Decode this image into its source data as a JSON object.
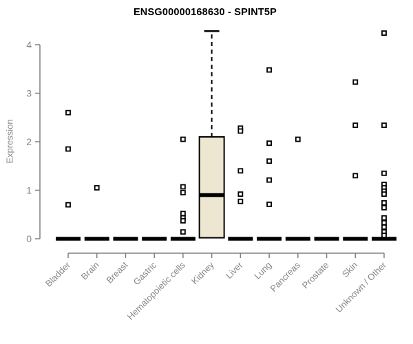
{
  "chart_data": {
    "type": "boxplot",
    "title": "ENSG00000168630 - SPINT5P",
    "ylabel": "Expression",
    "xlabel": "",
    "ylim": [
      0,
      4.4
    ],
    "yticks": [
      0,
      1,
      2,
      3,
      4
    ],
    "grid": false,
    "legend": null,
    "categories": [
      "Bladder",
      "Brain",
      "Breast",
      "Gastric",
      "Hematopoietic cells",
      "Kidney",
      "Liver",
      "Lung",
      "Pancreas",
      "Prostate",
      "Skin",
      "Unknown / Other"
    ],
    "boxes": [
      {
        "category": "Bladder",
        "whisker_low": 0,
        "q1": 0,
        "median": 0,
        "q3": 0,
        "whisker_high": 0,
        "outliers": [
          2.6,
          1.85,
          0.7
        ]
      },
      {
        "category": "Brain",
        "whisker_low": 0,
        "q1": 0,
        "median": 0,
        "q3": 0,
        "whisker_high": 0,
        "outliers": [
          1.05
        ]
      },
      {
        "category": "Breast",
        "whisker_low": 0,
        "q1": 0,
        "median": 0,
        "q3": 0,
        "whisker_high": 0,
        "outliers": []
      },
      {
        "category": "Gastric",
        "whisker_low": 0,
        "q1": 0,
        "median": 0,
        "q3": 0,
        "whisker_high": 0,
        "outliers": []
      },
      {
        "category": "Hematopoietic cells",
        "whisker_low": 0,
        "q1": 0,
        "median": 0,
        "q3": 0,
        "whisker_high": 0,
        "outliers": [
          2.05,
          1.07,
          0.95,
          0.52,
          0.43,
          0.37,
          0.14
        ]
      },
      {
        "category": "Kidney",
        "whisker_low": 0.02,
        "q1": 0.02,
        "median": 0.9,
        "q3": 2.1,
        "whisker_high": 4.28,
        "outliers": []
      },
      {
        "category": "Liver",
        "whisker_low": 0,
        "q1": 0,
        "median": 0,
        "q3": 0,
        "whisker_high": 0,
        "outliers": [
          2.28,
          2.22,
          1.4,
          0.92,
          0.77
        ]
      },
      {
        "category": "Lung",
        "whisker_low": 0,
        "q1": 0,
        "median": 0,
        "q3": 0,
        "whisker_high": 0,
        "outliers": [
          3.48,
          1.97,
          1.6,
          1.21,
          0.71
        ]
      },
      {
        "category": "Pancreas",
        "whisker_low": 0,
        "q1": 0,
        "median": 0,
        "q3": 0,
        "whisker_high": 0,
        "outliers": [
          2.05
        ]
      },
      {
        "category": "Prostate",
        "whisker_low": 0,
        "q1": 0,
        "median": 0,
        "q3": 0,
        "whisker_high": 0,
        "outliers": []
      },
      {
        "category": "Skin",
        "whisker_low": 0,
        "q1": 0,
        "median": 0,
        "q3": 0,
        "whisker_high": 0,
        "outliers": [
          3.23,
          2.34,
          1.3
        ]
      },
      {
        "category": "Unknown / Other",
        "whisker_low": 0,
        "q1": 0,
        "median": 0,
        "q3": 0,
        "whisker_high": 0,
        "outliers": [
          4.24,
          2.34,
          1.35,
          1.12,
          1.05,
          0.98,
          0.92,
          0.74,
          0.64,
          0.43,
          0.33,
          0.24,
          0.14,
          0.07
        ]
      }
    ],
    "colors": {
      "box_fill": "#EDE7D1",
      "box_border": "#000000",
      "median": "#000000",
      "whisker": "#000000",
      "outlier_stroke": "#000000",
      "outlier_fill": "#ffffff",
      "axis": "#808080",
      "tick_text": "#878787",
      "title_text": "#000000",
      "background": "#ffffff"
    }
  }
}
